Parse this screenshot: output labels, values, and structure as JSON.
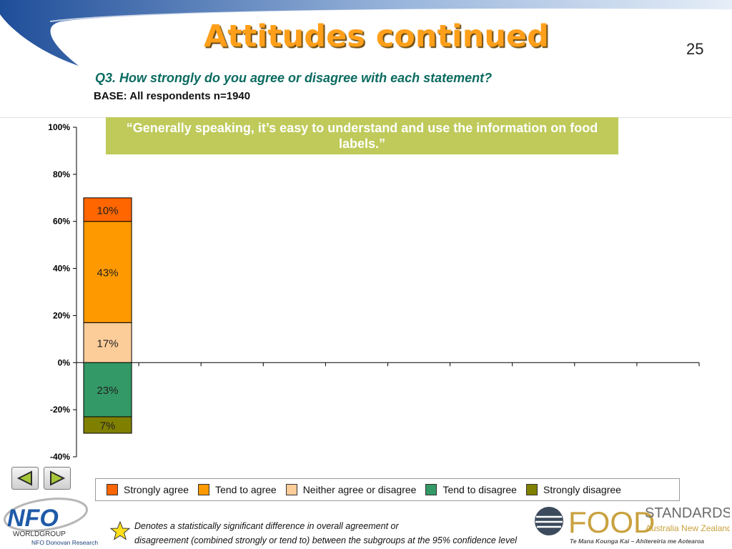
{
  "slide": {
    "title": "Attitudes continued",
    "page_number": "25",
    "question": "Q3. How strongly do you agree or disagree with each statement?",
    "base": "BASE: All respondents n=1940",
    "statement": "“Generally speaking, it’s easy to understand and use the information on food labels.”"
  },
  "colors": {
    "strongly_agree": "#ff6600",
    "tend_to_agree": "#ff9900",
    "neither": "#fccc99",
    "tend_to_disagree": "#339966",
    "strongly_disagree": "#808000",
    "banner": "#bfca5a",
    "title": "#ff9f1a",
    "question": "#0b6b60"
  },
  "chart_data": {
    "type": "bar",
    "stacked": true,
    "categories": [
      ""
    ],
    "series": [
      {
        "name": "Strongly agree",
        "values": [
          10
        ],
        "sign": 1,
        "color": "#ff6600",
        "label": "10%"
      },
      {
        "name": "Tend to agree",
        "values": [
          43
        ],
        "sign": 1,
        "color": "#ff9900",
        "label": "43%"
      },
      {
        "name": "Neither agree or disagree",
        "values": [
          17
        ],
        "sign": 1,
        "color": "#fccc99",
        "label": "17%"
      },
      {
        "name": "Tend to disagree",
        "values": [
          23
        ],
        "sign": -1,
        "color": "#339966",
        "label": "23%"
      },
      {
        "name": "Strongly disagree",
        "values": [
          7
        ],
        "sign": -1,
        "color": "#808000",
        "label": "7%"
      }
    ],
    "ylim": [
      -40,
      100
    ],
    "yticks": [
      "100%",
      "80%",
      "60%",
      "40%",
      "20%",
      "0%",
      "-20%",
      "-40%"
    ],
    "ytick_values": [
      100,
      80,
      60,
      40,
      20,
      0,
      -20,
      -40
    ],
    "xlabel": "",
    "ylabel": "",
    "legend_position": "bottom"
  },
  "legend": {
    "items": [
      "Strongly agree",
      "Tend to agree",
      "Neither agree or disagree",
      "Tend to disagree",
      "Strongly disagree"
    ]
  },
  "footnote": {
    "line1": "Denotes a statistically significant difference in overall agreement or",
    "line2": "disagreement (combined strongly or tend to) between the subgroups at the 95% confidence level"
  },
  "logos": {
    "nfo_main": "NFO",
    "nfo_group": "WORLDGROUP",
    "nfo_sub": "NFO Donovan Research",
    "food": "FOOD",
    "standards": "STANDARDS",
    "region": "Australia New Zealand",
    "maori": "Te Mana Kounga Kai – Ahitereiria me Aotearoa"
  }
}
